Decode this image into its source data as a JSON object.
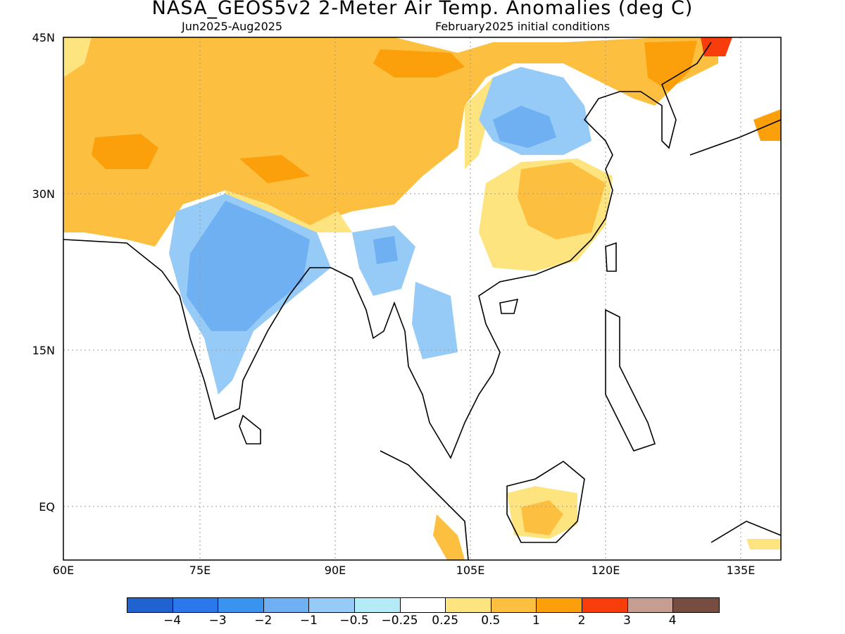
{
  "title": "NASA_GEOS5v2 2-Meter Air Temp. Anomalies (deg C)",
  "subtitle_left": "Jun2025-Aug2025",
  "subtitle_right": "February2025 initial conditions",
  "lat_labels": [
    "45N",
    "30N",
    "15N",
    "EQ"
  ],
  "lon_labels": [
    "60E",
    "75E",
    "90E",
    "105E",
    "120E",
    "135E"
  ],
  "colorbar": {
    "colors": [
      "#1f62d0",
      "#2a78ec",
      "#3b93f0",
      "#6fb0f2",
      "#95cbf6",
      "#b3ecf7",
      "#ffffff",
      "#fde47f",
      "#fcbf40",
      "#fb9f0b",
      "#f73d0c",
      "#c59e91",
      "#764d40"
    ],
    "labels": [
      "-4",
      "-3",
      "-2",
      "-1",
      "-0.5",
      "-0.25",
      "0.25",
      "0.5",
      "1",
      "2",
      "3",
      "4"
    ]
  },
  "legend": {
    "cool_color": "#6fb0f2",
    "warm_color": "#fcbf40"
  }
}
